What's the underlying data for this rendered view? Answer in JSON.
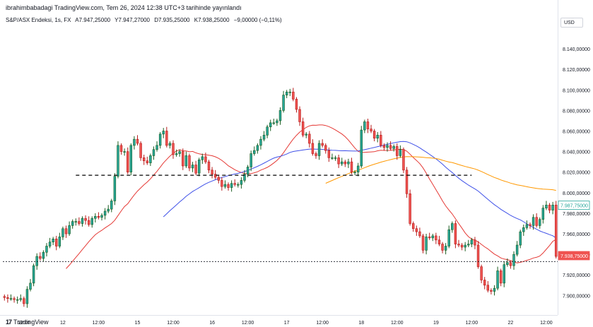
{
  "header": {
    "publisher_line": "ibrahimbabadagi TradingView.com, Tem 26, 2024 12:38 UTC+3 tarihinde yayınlandı",
    "symbol": "S&P/ASX Endeksi, 1s, FX",
    "open": "A7.947,25000",
    "high": "Y7.947,27000",
    "low": "D7.935,25000",
    "close": "K7.938,25000",
    "change": "−9,00000 (−0,11%)"
  },
  "currency_button": "USD",
  "footer": {
    "logo_text": "17",
    "brand": "TradingView"
  },
  "colors": {
    "up": "#26a69a",
    "down": "#ef5350",
    "up_dark": "#1b5e20",
    "down_dark": "#b71c1c",
    "ma_red": "#e53935",
    "ma_blue": "#3f51e8",
    "ma_orange": "#ff9800",
    "axis_text": "#131722",
    "grid": "#ffffff"
  },
  "chart_data": {
    "type": "candlestick",
    "title": "S&P/ASX Endeksi, 1s, FX",
    "ylim": [
      7881,
      8160
    ],
    "y_ticks": [
      "8.140,00000",
      "8.120,00000",
      "8.100,00000",
      "8.080,00000",
      "8.060,00000",
      "8.040,00000",
      "8.020,00000",
      "8.000,00000",
      "7.980,00000",
      "7.960,00000",
      "7.940,00000",
      "7.920,00000",
      "7.900,00000"
    ],
    "y_tick_values": [
      8140,
      8120,
      8100,
      8080,
      8060,
      8040,
      8020,
      8000,
      7980,
      7960,
      7940,
      7920,
      7900
    ],
    "x_ticks": [
      {
        "label": "12:00",
        "bar": 6
      },
      {
        "label": "12",
        "bar": 18
      },
      {
        "label": "12:00",
        "bar": 29
      },
      {
        "label": "15",
        "bar": 41
      },
      {
        "label": "12:00",
        "bar": 52
      },
      {
        "label": "16",
        "bar": 64
      },
      {
        "label": "12:00",
        "bar": 75
      },
      {
        "label": "17",
        "bar": 87
      },
      {
        "label": "12:00",
        "bar": 98
      },
      {
        "label": "18",
        "bar": 110
      },
      {
        "label": "12:00",
        "bar": 121
      },
      {
        "label": "19",
        "bar": 133
      },
      {
        "label": "12:00",
        "bar": 144
      },
      {
        "label": "22",
        "bar": 156
      },
      {
        "label": "12:00",
        "bar": 167
      }
    ],
    "price_labels": [
      {
        "text": "7.987,75000",
        "value": 7987.75,
        "color": "#26a69a",
        "filled": false
      },
      {
        "text": "7.938,75000",
        "value": 7938.75,
        "color": "#ef5350",
        "filled": true
      }
    ],
    "support_line": {
      "value": 8017,
      "from_bar": 22,
      "to_bar": 144
    },
    "last_price_line": 7933,
    "close": [
      7898,
      7897,
      7897,
      7896,
      7896,
      7897,
      7892,
      7906,
      7912,
      7929,
      7938,
      7936,
      7942,
      7948,
      7952,
      7955,
      7948,
      7957,
      7965,
      7960,
      7968,
      7972,
      7972,
      7970,
      7975,
      7973,
      7969,
      7975,
      7977,
      7976,
      7978,
      7982,
      7984,
      7992,
      8016,
      8046,
      8040,
      8040,
      8020,
      8046,
      8052,
      8048,
      8034,
      8031,
      8029,
      8036,
      8042,
      8046,
      8057,
      8060,
      8046,
      8048,
      8037,
      8038,
      8040,
      8026,
      8036,
      8024,
      8027,
      8019,
      8032,
      8035,
      8030,
      8022,
      8018,
      8015,
      8012,
      8006,
      8008,
      8005,
      8009,
      8008,
      8008,
      8012,
      8018,
      8025,
      8038,
      8041,
      8046,
      8052,
      8056,
      8064,
      8068,
      8068,
      8070,
      8080,
      8095,
      8098,
      8098,
      8091,
      8081,
      8069,
      8056,
      8057,
      8048,
      8038,
      8036,
      8048,
      8046,
      8041,
      8034,
      8034,
      8034,
      8028,
      8030,
      8028,
      8030,
      8020,
      8020,
      8026,
      8061,
      8069,
      8062,
      8060,
      8053,
      8056,
      8046,
      8044,
      8046,
      8043,
      8045,
      8036,
      8042,
      8022,
      7999,
      7970,
      7965,
      7962,
      7958,
      7944,
      7957,
      7956,
      7958,
      7954,
      7950,
      7944,
      7948,
      7964,
      7970,
      7950,
      7949,
      7947,
      7949,
      7950,
      7954,
      7949,
      7928,
      7915,
      7910,
      7905,
      7904,
      7907,
      7924,
      7912,
      7930,
      7932,
      7929,
      7940,
      7949,
      7962,
      7966,
      7969,
      7968,
      7976,
      7968,
      7974,
      7985,
      7988,
      7983,
      7988,
      7938
    ]
  }
}
